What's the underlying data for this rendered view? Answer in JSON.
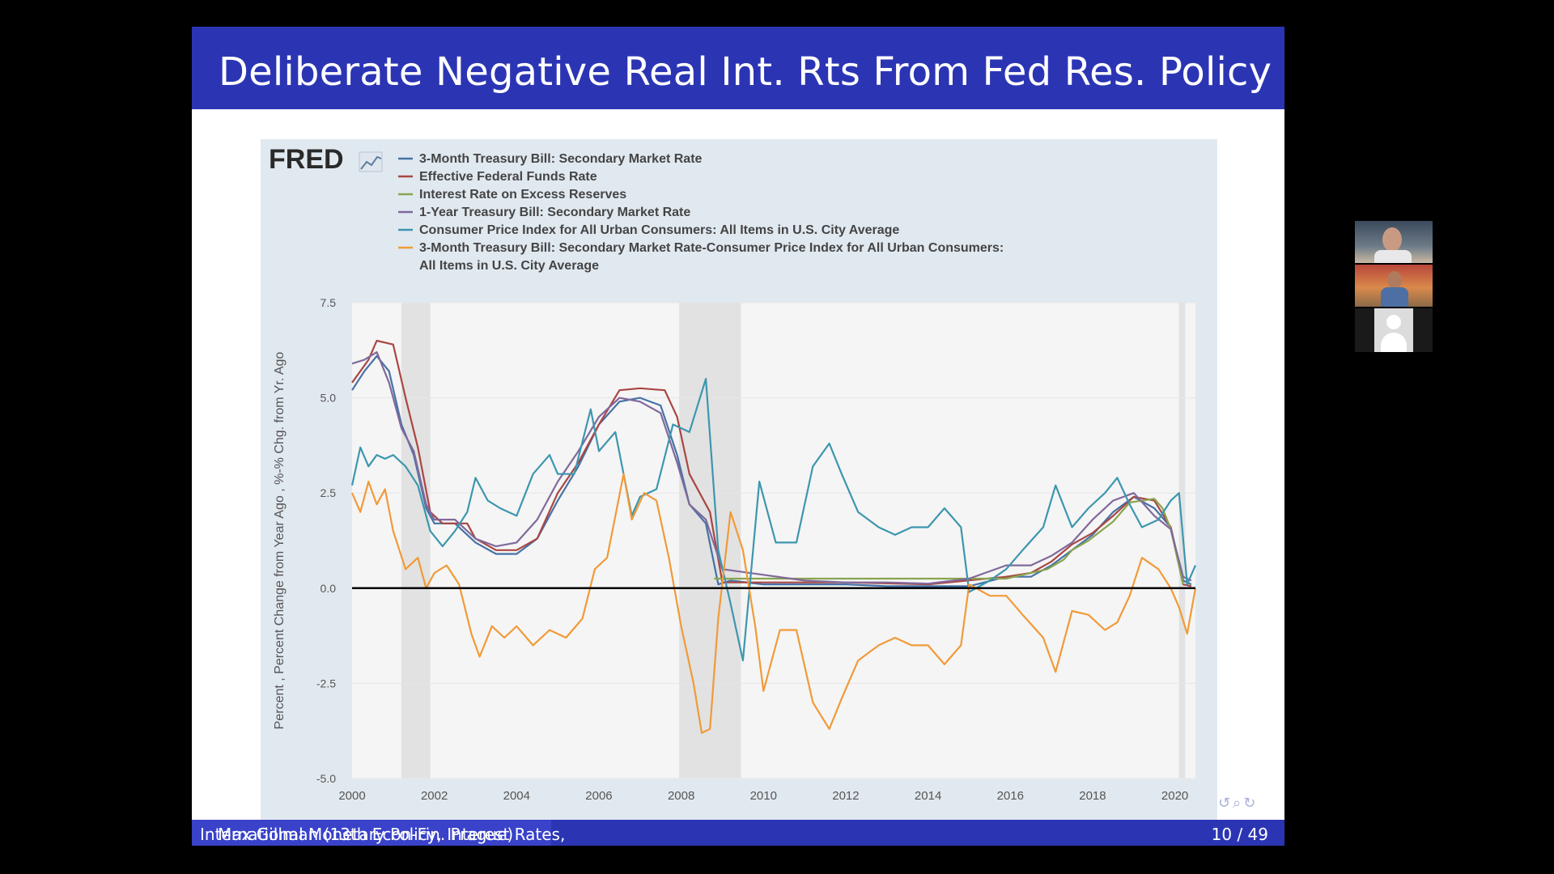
{
  "slide": {
    "title": "Deliberate Negative Real Int. Rts From Fed Res. Policy",
    "footer": {
      "author": "Max Gillman  (13th Econ-Fin. Prague)",
      "talk": "International Monetary Policy, Interest Rates,",
      "page": "10 / 49"
    },
    "nav_icons": [
      "undo-icon",
      "search-icon",
      "redo-icon"
    ]
  },
  "fred_logo": "FRED",
  "colors": {
    "title_bar": "#2b35b4",
    "chart_bg": "#e1e9f0",
    "tbill_3m": "#4572a7",
    "fed_funds": "#aa4643",
    "ioer": "#89a54e",
    "tbill_1y": "#80699b",
    "cpi": "#3d96ae",
    "real_rate": "#f19a38"
  },
  "video_tiles": [
    "participant-video-1",
    "participant-video-2",
    "participant-avatar-3"
  ],
  "chart_data": {
    "type": "line",
    "ylabel": "Percent , Percent Change from Year Ago , %-% Chg. from Yr. Ago",
    "ylim": [
      -5.0,
      7.5
    ],
    "xlim": [
      2000,
      2020.5
    ],
    "yticks": [
      "7.5",
      "5.0",
      "2.5",
      "0.0",
      "-2.5",
      "-5.0"
    ],
    "xticks": [
      "2000",
      "2002",
      "2004",
      "2006",
      "2008",
      "2010",
      "2012",
      "2014",
      "2016",
      "2018",
      "2020"
    ],
    "recessions": [
      [
        2001.2,
        2001.9
      ],
      [
        2007.95,
        2009.45
      ],
      [
        2020.1,
        2020.25
      ]
    ],
    "zero_line": 0,
    "series": [
      {
        "name": "3-Month Treasury Bill: Secondary Market Rate",
        "color": "#4572a7",
        "x": [
          2000.0,
          2000.3,
          2000.6,
          2000.9,
          2001.2,
          2001.5,
          2001.8,
          2002.0,
          2002.5,
          2003.0,
          2003.5,
          2004.0,
          2004.5,
          2005.0,
          2005.5,
          2006.0,
          2006.5,
          2007.0,
          2007.5,
          2007.9,
          2008.2,
          2008.6,
          2008.9,
          2009.2,
          2010.0,
          2011.0,
          2012.0,
          2013.0,
          2014.0,
          2015.0,
          2015.9,
          2016.5,
          2017.0,
          2017.5,
          2018.0,
          2018.5,
          2019.0,
          2019.5,
          2019.9,
          2020.2,
          2020.4
        ],
        "y": [
          5.2,
          5.7,
          6.1,
          5.7,
          4.3,
          3.5,
          2.1,
          1.7,
          1.7,
          1.2,
          0.9,
          0.9,
          1.3,
          2.3,
          3.2,
          4.3,
          4.9,
          5.0,
          4.8,
          3.5,
          2.2,
          1.7,
          0.1,
          0.2,
          0.1,
          0.1,
          0.1,
          0.05,
          0.05,
          0.05,
          0.3,
          0.3,
          0.6,
          1.0,
          1.4,
          2.0,
          2.4,
          2.1,
          1.6,
          0.2,
          0.1
        ]
      },
      {
        "name": "Effective Federal Funds Rate",
        "color": "#aa4643",
        "x": [
          2000.0,
          2000.4,
          2000.6,
          2001.0,
          2001.3,
          2001.6,
          2001.9,
          2002.2,
          2002.8,
          2003.0,
          2003.5,
          2004.0,
          2004.5,
          2005.0,
          2005.5,
          2006.0,
          2006.5,
          2007.0,
          2007.6,
          2007.9,
          2008.2,
          2008.7,
          2009.0,
          2010.0,
          2012.0,
          2014.0,
          2015.9,
          2016.5,
          2017.0,
          2017.5,
          2018.0,
          2018.5,
          2019.0,
          2019.5,
          2019.9,
          2020.2,
          2020.4
        ],
        "y": [
          5.4,
          6.0,
          6.5,
          6.4,
          5.0,
          3.7,
          2.0,
          1.7,
          1.7,
          1.3,
          1.0,
          1.0,
          1.3,
          2.5,
          3.3,
          4.3,
          5.2,
          5.25,
          5.2,
          4.5,
          3.0,
          2.0,
          0.15,
          0.15,
          0.15,
          0.1,
          0.3,
          0.4,
          0.7,
          1.15,
          1.45,
          1.9,
          2.4,
          2.3,
          1.6,
          0.1,
          0.05
        ]
      },
      {
        "name": "Interest Rate on Excess Reserves",
        "color": "#89a54e",
        "x": [
          2008.8,
          2015.9,
          2016.9,
          2017.3,
          2017.5,
          2017.9,
          2018.2,
          2018.5,
          2018.9,
          2019.5,
          2019.7,
          2019.9,
          2020.2
        ],
        "y": [
          0.25,
          0.25,
          0.5,
          0.75,
          1.0,
          1.25,
          1.5,
          1.75,
          2.25,
          2.35,
          2.1,
          1.55,
          0.1
        ]
      },
      {
        "name": "1-Year Treasury Bill: Secondary Market Rate",
        "color": "#80699b",
        "x": [
          2000.0,
          2000.3,
          2000.6,
          2000.9,
          2001.2,
          2001.5,
          2001.8,
          2002.0,
          2002.5,
          2003.0,
          2003.5,
          2004.0,
          2004.5,
          2005.0,
          2005.5,
          2006.0,
          2006.5,
          2007.0,
          2007.5,
          2007.9,
          2008.2,
          2008.6,
          2009.0,
          2010.0,
          2011.0,
          2012.0,
          2013.0,
          2014.0,
          2015.0,
          2015.9,
          2016.5,
          2017.0,
          2017.5,
          2018.0,
          2018.5,
          2019.0,
          2019.5,
          2019.9,
          2020.2,
          2020.4
        ],
        "y": [
          5.9,
          6.0,
          6.2,
          5.4,
          4.2,
          3.6,
          2.2,
          1.8,
          1.8,
          1.3,
          1.1,
          1.2,
          1.8,
          2.8,
          3.6,
          4.5,
          5.0,
          4.9,
          4.6,
          3.3,
          2.2,
          1.8,
          0.5,
          0.35,
          0.2,
          0.15,
          0.15,
          0.12,
          0.25,
          0.6,
          0.6,
          0.85,
          1.2,
          1.8,
          2.3,
          2.5,
          1.9,
          1.55,
          0.3,
          0.2
        ]
      },
      {
        "name": "Consumer Price Index for All Urban Consumers: All Items in U.S. City Average",
        "color": "#3d96ae",
        "x": [
          2000.0,
          2000.2,
          2000.4,
          2000.6,
          2000.8,
          2001.0,
          2001.3,
          2001.6,
          2001.9,
          2002.2,
          2002.5,
          2002.8,
          2003.0,
          2003.3,
          2003.6,
          2004.0,
          2004.4,
          2004.8,
          2005.0,
          2005.4,
          2005.8,
          2006.0,
          2006.4,
          2006.8,
          2007.0,
          2007.4,
          2007.8,
          2008.2,
          2008.6,
          2008.9,
          2009.2,
          2009.5,
          2009.9,
          2010.3,
          2010.8,
          2011.2,
          2011.6,
          2011.9,
          2012.3,
          2012.8,
          2013.2,
          2013.6,
          2014.0,
          2014.4,
          2014.8,
          2015.0,
          2015.5,
          2015.9,
          2016.3,
          2016.8,
          2017.1,
          2017.5,
          2017.9,
          2018.3,
          2018.6,
          2018.9,
          2019.2,
          2019.6,
          2019.9,
          2020.1,
          2020.3,
          2020.5
        ],
        "y": [
          2.7,
          3.7,
          3.2,
          3.5,
          3.4,
          3.5,
          3.2,
          2.7,
          1.5,
          1.1,
          1.5,
          2.0,
          2.9,
          2.3,
          2.1,
          1.9,
          3.0,
          3.5,
          3.0,
          3.0,
          4.7,
          3.6,
          4.1,
          1.9,
          2.4,
          2.6,
          4.3,
          4.1,
          5.5,
          1.0,
          -0.4,
          -1.9,
          2.8,
          1.2,
          1.2,
          3.2,
          3.8,
          3.0,
          2.0,
          1.6,
          1.4,
          1.6,
          1.6,
          2.1,
          1.6,
          -0.1,
          0.2,
          0.5,
          1.0,
          1.6,
          2.7,
          1.6,
          2.1,
          2.5,
          2.9,
          2.2,
          1.6,
          1.8,
          2.3,
          2.5,
          0.1,
          0.6
        ]
      },
      {
        "name": "3-Month Treasury Bill: Secondary Market Rate-Consumer Price Index for All Urban Consumers: All Items in U.S. City Average",
        "color": "#f19a38",
        "x": [
          2000.0,
          2000.2,
          2000.4,
          2000.6,
          2000.8,
          2001.0,
          2001.3,
          2001.6,
          2001.8,
          2002.0,
          2002.3,
          2002.6,
          2002.9,
          2003.1,
          2003.4,
          2003.7,
          2004.0,
          2004.4,
          2004.8,
          2005.2,
          2005.6,
          2005.9,
          2006.2,
          2006.6,
          2006.8,
          2007.1,
          2007.4,
          2007.7,
          2008.0,
          2008.3,
          2008.5,
          2008.7,
          2008.9,
          2009.2,
          2009.5,
          2009.8,
          2010.0,
          2010.4,
          2010.8,
          2011.2,
          2011.6,
          2011.9,
          2012.3,
          2012.8,
          2013.2,
          2013.6,
          2014.0,
          2014.4,
          2014.8,
          2015.0,
          2015.5,
          2015.9,
          2016.3,
          2016.8,
          2017.1,
          2017.5,
          2017.9,
          2018.3,
          2018.6,
          2018.9,
          2019.2,
          2019.6,
          2019.9,
          2020.1,
          2020.3,
          2020.5
        ],
        "y": [
          2.5,
          2.0,
          2.8,
          2.2,
          2.6,
          1.5,
          0.5,
          0.8,
          0.0,
          0.4,
          0.6,
          0.1,
          -1.2,
          -1.8,
          -1.0,
          -1.3,
          -1.0,
          -1.5,
          -1.1,
          -1.3,
          -0.8,
          0.5,
          0.8,
          3.0,
          1.8,
          2.5,
          2.3,
          0.8,
          -1.0,
          -2.5,
          -3.8,
          -3.7,
          -0.8,
          2.0,
          1.0,
          -1.0,
          -2.7,
          -1.1,
          -1.1,
          -3.0,
          -3.7,
          -2.9,
          -1.9,
          -1.5,
          -1.3,
          -1.5,
          -1.5,
          -2.0,
          -1.5,
          0.1,
          -0.2,
          -0.2,
          -0.7,
          -1.3,
          -2.2,
          -0.6,
          -0.7,
          -1.1,
          -0.9,
          -0.2,
          0.8,
          0.5,
          0.0,
          -0.5,
          -1.2,
          0.0
        ]
      }
    ]
  }
}
